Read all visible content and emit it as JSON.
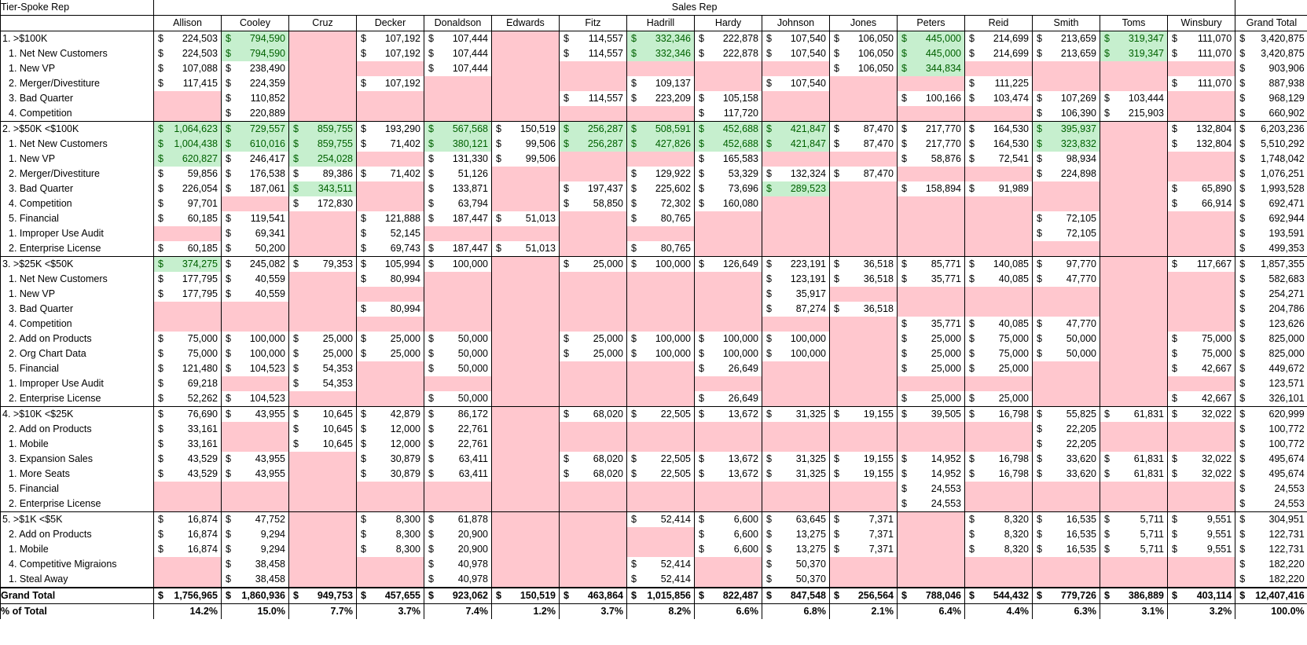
{
  "pivot": {
    "row_header": "Tier-Spoke Rep",
    "column_group_header": "Sales Rep",
    "reps": [
      "Allison",
      "Cooley",
      "Cruz",
      "Decker",
      "Donaldson",
      "Edwards",
      "Fitz",
      "Hadrill",
      "Hardy",
      "Johnson",
      "Jones",
      "Peters",
      "Reid",
      "Smith",
      "Toms",
      "Winsbury"
    ],
    "grand_total_header": "Grand Total",
    "rows": [
      {
        "label": "1. >$100K",
        "group": true,
        "cells": [
          "224,503",
          "794,590",
          "",
          "107,192",
          "107,444",
          "",
          "114,557",
          "332,346",
          "222,878",
          "107,540",
          "106,050",
          "445,000",
          "214,699",
          "213,659",
          "319,347",
          "111,070"
        ],
        "fill": "WGPWWPWGWWWGWWGW",
        "total": "3,420,875"
      },
      {
        "label": "1. Net New Customers",
        "cells": [
          "224,503",
          "794,590",
          "",
          "107,192",
          "107,444",
          "",
          "114,557",
          "332,346",
          "222,878",
          "107,540",
          "106,050",
          "445,000",
          "214,699",
          "213,659",
          "319,347",
          "111,070"
        ],
        "fill": "WGPWWPWGWWWGWWGW",
        "total": "3,420,875"
      },
      {
        "label": "1. New VP",
        "cells": [
          "107,088",
          "238,490",
          "",
          "",
          "107,444",
          "",
          "",
          "",
          "",
          "",
          "106,050",
          "344,834",
          "",
          "",
          "",
          ""
        ],
        "fill": "WWPPWPPPPPWGPPPP",
        "total": "903,906"
      },
      {
        "label": "2. Merger/Divestiture",
        "cells": [
          "117,415",
          "224,359",
          "",
          "107,192",
          "",
          "",
          "",
          "109,137",
          "",
          "107,540",
          "",
          "",
          "111,225",
          "",
          "",
          "111,070"
        ],
        "fill": "WWPWPPPWPWPPWPPW",
        "total": "887,938"
      },
      {
        "label": "3. Bad Quarter",
        "cells": [
          "",
          "110,852",
          "",
          "",
          "",
          "",
          "114,557",
          "223,209",
          "105,158",
          "",
          "",
          "100,166",
          "103,474",
          "107,269",
          "103,444",
          ""
        ],
        "fill": "PWPPPPWWWPPWWWWP",
        "total": "968,129"
      },
      {
        "label": "4. Competition",
        "cells": [
          "",
          "220,889",
          "",
          "",
          "",
          "",
          "",
          "",
          "117,720",
          "",
          "",
          "",
          "",
          "106,390",
          "215,903",
          ""
        ],
        "fill": "PWPPPPPPWPPPPWWP",
        "total": "660,902"
      },
      {
        "label": "2. >$50K <$100K",
        "group": true,
        "cells": [
          "1,064,623",
          "729,557",
          "859,755",
          "193,290",
          "567,568",
          "150,519",
          "256,287",
          "508,591",
          "452,688",
          "421,847",
          "87,470",
          "217,770",
          "164,530",
          "395,937",
          "",
          "132,804"
        ],
        "fill": "GGGWGWGGGGWWWGPW",
        "total": "6,203,236"
      },
      {
        "label": "1. Net New Customers",
        "cells": [
          "1,004,438",
          "610,016",
          "859,755",
          "71,402",
          "380,121",
          "99,506",
          "256,287",
          "427,826",
          "452,688",
          "421,847",
          "87,470",
          "217,770",
          "164,530",
          "323,832",
          "",
          "132,804"
        ],
        "fill": "GGGWGWGGGGWWWGPW",
        "total": "5,510,292"
      },
      {
        "label": "1. New VP",
        "cells": [
          "620,827",
          "246,417",
          "254,028",
          "",
          "131,330",
          "99,506",
          "",
          "",
          "165,583",
          "",
          "",
          "58,876",
          "72,541",
          "98,934",
          "",
          ""
        ],
        "fill": "GWGPWWPPWPPWWWPP",
        "total": "1,748,042"
      },
      {
        "label": "2. Merger/Divestiture",
        "cells": [
          "59,856",
          "176,538",
          "89,386",
          "71,402",
          "51,126",
          "",
          "",
          "129,922",
          "53,329",
          "132,324",
          "87,470",
          "",
          "",
          "224,898",
          "",
          ""
        ],
        "fill": "WWWWWPPWWWWPPWPP",
        "total": "1,076,251"
      },
      {
        "label": "3. Bad Quarter",
        "cells": [
          "226,054",
          "187,061",
          "343,511",
          "",
          "133,871",
          "",
          "197,437",
          "225,602",
          "73,696",
          "289,523",
          "",
          "158,894",
          "91,989",
          "",
          "",
          "65,890"
        ],
        "fill": "WWGPWPWWWGPWWPPW",
        "total": "1,993,528"
      },
      {
        "label": "4. Competition",
        "cells": [
          "97,701",
          "",
          "172,830",
          "",
          "63,794",
          "",
          "58,850",
          "72,302",
          "160,080",
          "",
          "",
          "",
          "",
          "",
          "",
          "66,914"
        ],
        "fill": "WPWPWPWWWPPPPPPW",
        "total": "692,471"
      },
      {
        "label": "5. Financial",
        "cells": [
          "60,185",
          "119,541",
          "",
          "121,888",
          "187,447",
          "51,013",
          "",
          "80,765",
          "",
          "",
          "",
          "",
          "",
          "72,105",
          "",
          ""
        ],
        "fill": "WWPWWWPWPPPPPWPP",
        "total": "692,944"
      },
      {
        "label": "1. Improper Use Audit",
        "cells": [
          "",
          "69,341",
          "",
          "52,145",
          "",
          "",
          "",
          "",
          "",
          "",
          "",
          "",
          "",
          "72,105",
          "",
          ""
        ],
        "fill": "PWPWPPPPPPPPPWPP",
        "total": "193,591"
      },
      {
        "label": "2. Enterprise License",
        "cells": [
          "60,185",
          "50,200",
          "",
          "69,743",
          "187,447",
          "51,013",
          "",
          "80,765",
          "",
          "",
          "",
          "",
          "",
          "",
          "",
          ""
        ],
        "fill": "WWPWWWPWPPPPPPPP",
        "total": "499,353"
      },
      {
        "label": "3. >$25K <$50K",
        "group": true,
        "cells": [
          "374,275",
          "245,082",
          "79,353",
          "105,994",
          "100,000",
          "",
          "25,000",
          "100,000",
          "126,649",
          "223,191",
          "36,518",
          "85,771",
          "140,085",
          "97,770",
          "",
          "117,667"
        ],
        "fill": "GWWWWPWWWWWWWWPW",
        "total": "1,857,355"
      },
      {
        "label": "1. Net New Customers",
        "cells": [
          "177,795",
          "40,559",
          "",
          "80,994",
          "",
          "",
          "",
          "",
          "",
          "123,191",
          "36,518",
          "35,771",
          "40,085",
          "47,770",
          "",
          ""
        ],
        "fill": "WWPWPPPPPWWWWWPP",
        "total": "582,683"
      },
      {
        "label": "1. New VP",
        "cells": [
          "177,795",
          "40,559",
          "",
          "",
          "",
          "",
          "",
          "",
          "",
          "35,917",
          "",
          "",
          "",
          "",
          "",
          ""
        ],
        "fill": "WWPPPPPPPWPPPPPP",
        "total": "254,271"
      },
      {
        "label": "3. Bad Quarter",
        "cells": [
          "",
          "",
          "",
          "80,994",
          "",
          "",
          "",
          "",
          "",
          "87,274",
          "36,518",
          "",
          "",
          "",
          "",
          ""
        ],
        "fill": "PPPWPPPPPWWPPPPP",
        "total": "204,786"
      },
      {
        "label": "4. Competition",
        "cells": [
          "",
          "",
          "",
          "",
          "",
          "",
          "",
          "",
          "",
          "",
          "",
          "35,771",
          "40,085",
          "47,770",
          "",
          ""
        ],
        "fill": "PPPPPPPPPPPWWWPP",
        "total": "123,626"
      },
      {
        "label": "2. Add on Products",
        "cells": [
          "75,000",
          "100,000",
          "25,000",
          "25,000",
          "50,000",
          "",
          "25,000",
          "100,000",
          "100,000",
          "100,000",
          "",
          "25,000",
          "75,000",
          "50,000",
          "",
          "75,000"
        ],
        "fill": "WWWWWPWWWWPWWWPW",
        "total": "825,000"
      },
      {
        "label": "2. Org Chart Data",
        "cells": [
          "75,000",
          "100,000",
          "25,000",
          "25,000",
          "50,000",
          "",
          "25,000",
          "100,000",
          "100,000",
          "100,000",
          "",
          "25,000",
          "75,000",
          "50,000",
          "",
          "75,000"
        ],
        "fill": "WWWWWPWWWWPWWWPW",
        "total": "825,000"
      },
      {
        "label": "5. Financial",
        "cells": [
          "121,480",
          "104,523",
          "54,353",
          "",
          "50,000",
          "",
          "",
          "",
          "26,649",
          "",
          "",
          "25,000",
          "25,000",
          "",
          "",
          "42,667"
        ],
        "fill": "WWWPWPPPWPPWWPPW",
        "total": "449,672"
      },
      {
        "label": "1. Improper Use Audit",
        "cells": [
          "69,218",
          "",
          "54,353",
          "",
          "",
          "",
          "",
          "",
          "",
          "",
          "",
          "",
          "",
          "",
          "",
          ""
        ],
        "fill": "WPWPPPPPPPPPPPPP",
        "total": "123,571"
      },
      {
        "label": "2. Enterprise License",
        "cells": [
          "52,262",
          "104,523",
          "",
          "",
          "50,000",
          "",
          "",
          "",
          "26,649",
          "",
          "",
          "25,000",
          "25,000",
          "",
          "",
          "42,667"
        ],
        "fill": "WWPPWPPPWPPWWPPW",
        "total": "326,101"
      },
      {
        "label": "4. >$10K <$25K",
        "group": true,
        "cells": [
          "76,690",
          "43,955",
          "10,645",
          "42,879",
          "86,172",
          "",
          "68,020",
          "22,505",
          "13,672",
          "31,325",
          "19,155",
          "39,505",
          "16,798",
          "55,825",
          "61,831",
          "32,022"
        ],
        "fill": "WWWWWPWWWWWWWWWW",
        "total": "620,999"
      },
      {
        "label": "2. Add on Products",
        "cells": [
          "33,161",
          "",
          "10,645",
          "12,000",
          "22,761",
          "",
          "",
          "",
          "",
          "",
          "",
          "",
          "",
          "22,205",
          "",
          ""
        ],
        "fill": "WPWWWPPPPPPPPWPP",
        "total": "100,772"
      },
      {
        "label": "1. Mobile",
        "cells": [
          "33,161",
          "",
          "10,645",
          "12,000",
          "22,761",
          "",
          "",
          "",
          "",
          "",
          "",
          "",
          "",
          "22,205",
          "",
          ""
        ],
        "fill": "WPWWWPPPPPPPPWPP",
        "total": "100,772"
      },
      {
        "label": "3. Expansion Sales",
        "cells": [
          "43,529",
          "43,955",
          "",
          "30,879",
          "63,411",
          "",
          "68,020",
          "22,505",
          "13,672",
          "31,325",
          "19,155",
          "14,952",
          "16,798",
          "33,620",
          "61,831",
          "32,022"
        ],
        "fill": "WWPWWPWWWWWWWWWW",
        "total": "495,674"
      },
      {
        "label": "1. More Seats",
        "cells": [
          "43,529",
          "43,955",
          "",
          "30,879",
          "63,411",
          "",
          "68,020",
          "22,505",
          "13,672",
          "31,325",
          "19,155",
          "14,952",
          "16,798",
          "33,620",
          "61,831",
          "32,022"
        ],
        "fill": "WWPWWPWWWWWWWWWW",
        "total": "495,674"
      },
      {
        "label": "5. Financial",
        "cells": [
          "",
          "",
          "",
          "",
          "",
          "",
          "",
          "",
          "",
          "",
          "",
          "24,553",
          "",
          "",
          "",
          ""
        ],
        "fill": "PPPPPPPPPPPWPPPP",
        "total": "24,553"
      },
      {
        "label": "2. Enterprise License",
        "cells": [
          "",
          "",
          "",
          "",
          "",
          "",
          "",
          "",
          "",
          "",
          "",
          "24,553",
          "",
          "",
          "",
          ""
        ],
        "fill": "PPPPPPPPPPPWPPPP",
        "total": "24,553"
      },
      {
        "label": "5. >$1K <$5K",
        "group": true,
        "cells": [
          "16,874",
          "47,752",
          "",
          "8,300",
          "61,878",
          "",
          "",
          "52,414",
          "6,600",
          "63,645",
          "7,371",
          "",
          "8,320",
          "16,535",
          "5,711",
          "9,551"
        ],
        "fill": "WWPWWPPWWWWPWWWW",
        "total": "304,951"
      },
      {
        "label": "2. Add on Products",
        "cells": [
          "16,874",
          "9,294",
          "",
          "8,300",
          "20,900",
          "",
          "",
          "",
          "6,600",
          "13,275",
          "7,371",
          "",
          "8,320",
          "16,535",
          "5,711",
          "9,551"
        ],
        "fill": "WWPWWPPPWWWPWWWW",
        "total": "122,731"
      },
      {
        "label": "1. Mobile",
        "cells": [
          "16,874",
          "9,294",
          "",
          "8,300",
          "20,900",
          "",
          "",
          "",
          "6,600",
          "13,275",
          "7,371",
          "",
          "8,320",
          "16,535",
          "5,711",
          "9,551"
        ],
        "fill": "WWPWWPPPWWWPWWWW",
        "total": "122,731"
      },
      {
        "label": "4. Competitive Migraions",
        "cells": [
          "",
          "38,458",
          "",
          "",
          "40,978",
          "",
          "",
          "52,414",
          "",
          "50,370",
          "",
          "",
          "",
          "",
          "",
          ""
        ],
        "fill": "PWPPWPPWPWPPPPPP",
        "total": "182,220"
      },
      {
        "label": "1. Steal Away",
        "cells": [
          "",
          "38,458",
          "",
          "",
          "40,978",
          "",
          "",
          "52,414",
          "",
          "50,370",
          "",
          "",
          "",
          "",
          "",
          ""
        ],
        "fill": "PWPPWPPWPWPPPPPP",
        "total": "182,220"
      }
    ],
    "grand_total_row": {
      "label": "Grand Total",
      "cells": [
        "1,756,965",
        "1,860,936",
        "949,753",
        "457,655",
        "923,062",
        "150,519",
        "463,864",
        "1,015,856",
        "822,487",
        "847,548",
        "256,564",
        "788,046",
        "544,432",
        "779,726",
        "386,889",
        "403,114"
      ],
      "total": "12,407,416"
    },
    "percent_row": {
      "label": "% of Total",
      "cells": [
        "14.2%",
        "15.0%",
        "7.7%",
        "3.7%",
        "7.4%",
        "1.2%",
        "3.7%",
        "8.2%",
        "6.6%",
        "6.8%",
        "2.1%",
        "6.4%",
        "4.4%",
        "6.3%",
        "3.1%",
        "3.2%"
      ],
      "total": "100.0%"
    },
    "colors": {
      "low_fill": "#ffc7ce",
      "high_fill": "#c6efce",
      "high_text": "#006100"
    }
  }
}
